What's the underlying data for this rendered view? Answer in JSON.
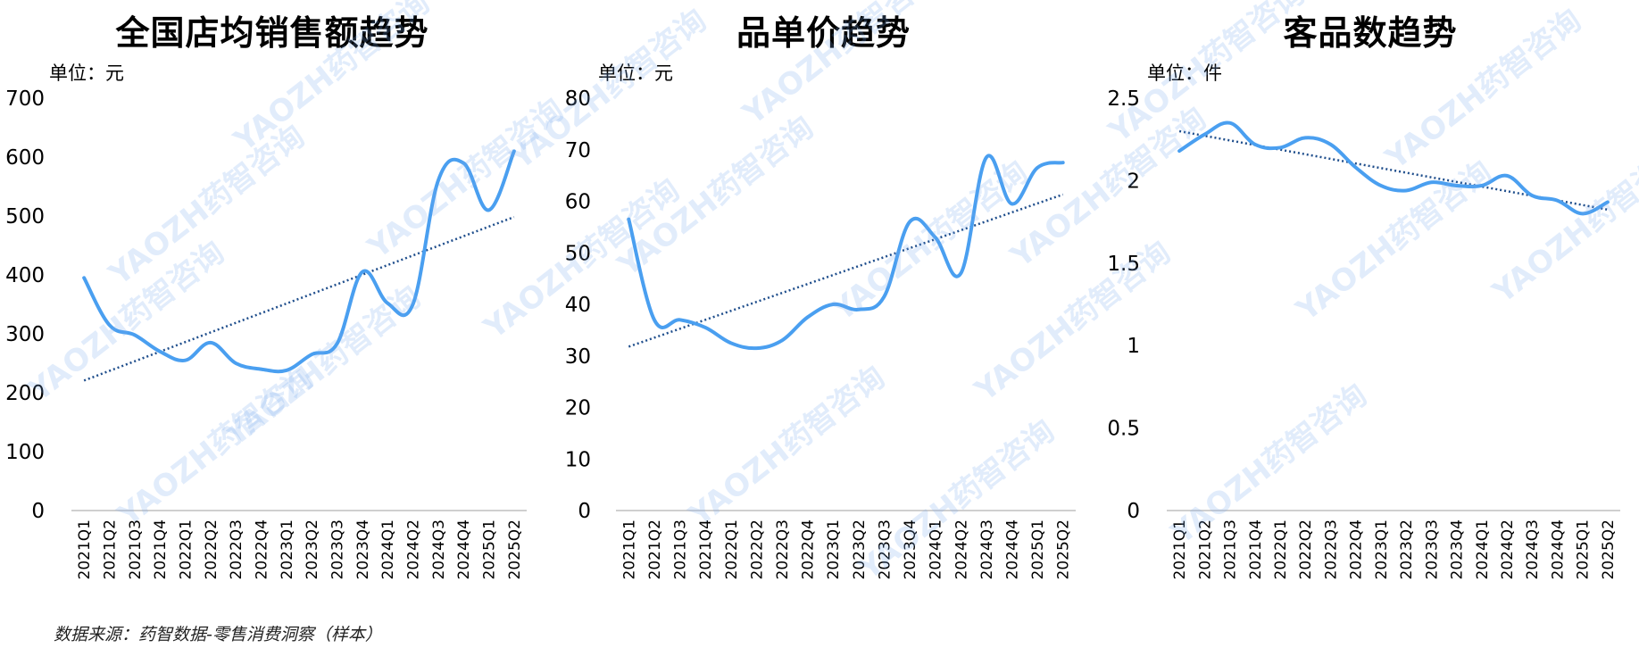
{
  "footer": {
    "source": "数据来源：药智数据-零售消费洞察（样本）"
  },
  "watermark": "YAOZH药智咨询",
  "colors": {
    "line": "#4a9ff0",
    "trend": "#1f4e8c",
    "axis": "#bfbfbf"
  },
  "chart_data": [
    {
      "type": "line",
      "title": "全国店均销售额趋势",
      "unit": "单位：元",
      "categories": [
        "2021Q1",
        "2021Q2",
        "2021Q3",
        "2021Q4",
        "2022Q1",
        "2022Q2",
        "2022Q3",
        "2022Q4",
        "2023Q1",
        "2023Q2",
        "2023Q3",
        "2023Q4",
        "2024Q1",
        "2024Q2",
        "2024Q3",
        "2024Q4",
        "2025Q1",
        "2025Q2"
      ],
      "values": [
        395,
        315,
        298,
        270,
        255,
        285,
        250,
        240,
        238,
        265,
        283,
        405,
        352,
        350,
        560,
        590,
        510,
        610
      ],
      "trendline": "linear",
      "ylim": [
        0,
        700
      ],
      "yticks": [
        "0",
        "100",
        "200",
        "300",
        "400",
        "500",
        "600",
        "700"
      ],
      "grid": false
    },
    {
      "type": "line",
      "title": "品单价趋势",
      "unit": "单位：元",
      "categories": [
        "2021Q1",
        "2021Q2",
        "2021Q3",
        "2021Q4",
        "2022Q1",
        "2022Q2",
        "2022Q3",
        "2022Q4",
        "2023Q1",
        "2023Q2",
        "2023Q3",
        "2023Q4",
        "2024Q1",
        "2024Q2",
        "2024Q3",
        "2024Q4",
        "2025Q1",
        "2025Q2"
      ],
      "values": [
        56.5,
        37,
        37,
        35.5,
        32.5,
        31.5,
        33,
        37.5,
        40,
        39,
        41.5,
        56,
        53,
        46,
        68.5,
        59.5,
        66.5,
        67.5
      ],
      "trendline": "linear",
      "ylim": [
        0,
        80
      ],
      "yticks": [
        "0",
        "10",
        "20",
        "30",
        "40",
        "50",
        "60",
        "70",
        "80"
      ],
      "grid": false
    },
    {
      "type": "line",
      "title": "客品数趋势",
      "unit": "单位：件",
      "categories": [
        "2021Q1",
        "2021Q2",
        "2021Q3",
        "2021Q4",
        "2022Q1",
        "2022Q2",
        "2022Q3",
        "2022Q4",
        "2023Q1",
        "2023Q2",
        "2023Q3",
        "2023Q4",
        "2024Q1",
        "2024Q2",
        "2024Q3",
        "2024Q4",
        "2025Q1",
        "2025Q2"
      ],
      "values": [
        2.18,
        2.28,
        2.35,
        2.22,
        2.2,
        2.26,
        2.22,
        2.08,
        1.97,
        1.94,
        1.99,
        1.97,
        1.97,
        2.03,
        1.91,
        1.88,
        1.8,
        1.87
      ],
      "trendline": "linear",
      "ylim": [
        0,
        2.5
      ],
      "yticks": [
        "0",
        "0.5",
        "1",
        "1.5",
        "2",
        "2.5"
      ],
      "grid": false
    }
  ]
}
